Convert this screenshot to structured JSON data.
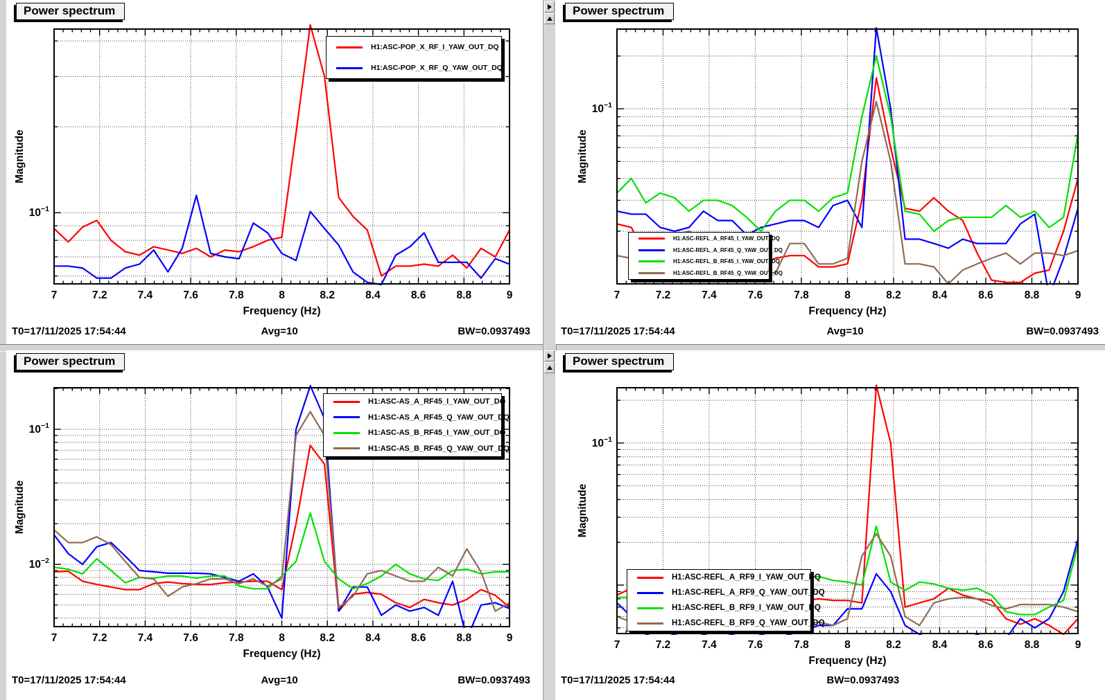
{
  "window": {
    "background": "#ffffff",
    "divider_color": "#d4d4d4"
  },
  "status_common": {
    "t0": "T0=17/11/2025 17:54:44",
    "avg": "Avg=10",
    "bw": "BW=0.0937493"
  },
  "icons": {
    "divider_buttons": [
      "right-arrow-icon",
      "up-arrow-icon"
    ]
  },
  "colors": {
    "trace_red": "#ff0000",
    "trace_blue": "#0000ff",
    "trace_green": "#00e100",
    "trace_brown": "#8f6b55",
    "grid": "#444444",
    "frame": "#000000"
  },
  "pads": [
    {
      "title": "Power spectrum",
      "status": {
        "t0": "T0=17/11/2025 17:54:44",
        "avg": "Avg=10",
        "bw": "BW=0.0937493"
      }
    },
    {
      "title": "Power spectrum",
      "status": {
        "t0": "T0=17/11/2025 17:54:44",
        "avg": "Avg=10",
        "bw": "BW=0.0937493"
      }
    },
    {
      "title": "Power spectrum",
      "status": {
        "t0": "T0=17/11/2025 17:54:44",
        "avg": "Avg=10",
        "bw": "BW=0.0937493"
      }
    },
    {
      "title": "Power spectrum",
      "status": {
        "t0": "T0=17/11/2025 17:54:44",
        "avg": "Avg=10",
        "bw": "BW=0.0937493"
      }
    }
  ],
  "x_axis": {
    "label": "Frequency (Hz)",
    "min": 7,
    "max": 9,
    "major_step": 0.2,
    "minor_step": 0.04,
    "tick_labels": [
      "7",
      "7.2",
      "7.4",
      "7.6",
      "7.8",
      "8",
      "8.2",
      "8.4",
      "8.6",
      "8.8",
      "9"
    ]
  },
  "chart_data": [
    {
      "type": "line",
      "title": "Power spectrum",
      "xlabel": "Frequency (Hz)",
      "ylabel": "Magnitude",
      "xlim": [
        7,
        9
      ],
      "ylim": [
        0.0563,
        0.44
      ],
      "grid": true,
      "legend_position": "top-right",
      "x_start": 7,
      "x_step": 0.0625,
      "ygrid": [
        0.06,
        0.07,
        0.08,
        0.09,
        0.1,
        0.2,
        0.3,
        0.4
      ],
      "ydecade_labels": [
        {
          "base": "10",
          "exp": "−1",
          "value": 0.1
        }
      ],
      "series": [
        {
          "name": "H1:ASC-POP_X_RF_I_YAW_OUT_DQ",
          "color": "#ff0000",
          "values": [
            0.088,
            0.079,
            0.089,
            0.094,
            0.08,
            0.073,
            0.071,
            0.076,
            0.074,
            0.072,
            0.075,
            0.07,
            0.074,
            0.073,
            0.076,
            0.08,
            0.082,
            0.19,
            0.455,
            0.3,
            0.113,
            0.097,
            0.087,
            0.06,
            0.065,
            0.065,
            0.066,
            0.065,
            0.071,
            0.064,
            0.075,
            0.07,
            0.087
          ]
        },
        {
          "name": "H1:ASC-POP_X_RF_Q_YAW_OUT_DQ",
          "color": "#0000ff",
          "values": [
            0.065,
            0.065,
            0.064,
            0.059,
            0.059,
            0.064,
            0.066,
            0.074,
            0.062,
            0.075,
            0.115,
            0.072,
            0.07,
            0.069,
            0.092,
            0.085,
            0.072,
            0.068,
            0.101,
            0.088,
            0.077,
            0.062,
            0.057,
            0.056,
            0.071,
            0.076,
            0.085,
            0.067,
            0.067,
            0.067,
            0.059,
            0.069,
            0.066
          ]
        }
      ]
    },
    {
      "type": "line",
      "title": "Power spectrum",
      "xlabel": "Frequency (Hz)",
      "ylabel": "Magnitude",
      "xlim": [
        7,
        9
      ],
      "ylim": [
        0.01,
        0.285
      ],
      "grid": true,
      "legend_position": "mid-left",
      "x_start": 7,
      "x_step": 0.0625,
      "ygrid": [
        0.02,
        0.03,
        0.04,
        0.05,
        0.06,
        0.07,
        0.08,
        0.09,
        0.1,
        0.2
      ],
      "ydecade_labels": [
        {
          "base": "10",
          "exp": "−1",
          "value": 0.1
        }
      ],
      "series": [
        {
          "name": "H1:ASC-REFL_A_RF45_I_YAW_OUT_DQ",
          "color": "#ff0000",
          "values": [
            0.022,
            0.021,
            0.0145,
            0.013,
            0.0125,
            0.013,
            0.014,
            0.0135,
            0.014,
            0.0135,
            0.013,
            0.014,
            0.0145,
            0.0145,
            0.0125,
            0.0125,
            0.013,
            0.03,
            0.15,
            0.06,
            0.027,
            0.026,
            0.031,
            0.026,
            0.023,
            0.015,
            0.0105,
            0.0102,
            0.0102,
            0.0115,
            0.012,
            0.02,
            0.04
          ]
        },
        {
          "name": "H1:ASC-REFL_A_RF45_Q_YAW_OUT_DQ",
          "color": "#0000ff",
          "values": [
            0.026,
            0.025,
            0.025,
            0.021,
            0.02,
            0.021,
            0.026,
            0.023,
            0.023,
            0.019,
            0.021,
            0.022,
            0.023,
            0.023,
            0.021,
            0.028,
            0.03,
            0.021,
            0.29,
            0.1,
            0.018,
            0.018,
            0.017,
            0.016,
            0.018,
            0.017,
            0.017,
            0.017,
            0.022,
            0.025,
            0.0085,
            0.014,
            0.027
          ]
        },
        {
          "name": "H1:ASC-REFL_B_RF45_I_YAW_OUT_DQ",
          "color": "#00e100",
          "values": [
            0.033,
            0.04,
            0.029,
            0.033,
            0.031,
            0.026,
            0.03,
            0.03,
            0.028,
            0.024,
            0.02,
            0.026,
            0.03,
            0.03,
            0.026,
            0.031,
            0.033,
            0.09,
            0.2,
            0.09,
            0.026,
            0.025,
            0.02,
            0.023,
            0.024,
            0.024,
            0.024,
            0.028,
            0.024,
            0.026,
            0.021,
            0.024,
            0.072
          ]
        },
        {
          "name": "H1:ASC-REFL_B_RF45_Q_YAW_OUT_DQ",
          "color": "#8f6b55",
          "values": [
            0.0145,
            0.014,
            0.015,
            0.016,
            0.019,
            0.02,
            0.018,
            0.016,
            0.016,
            0.0155,
            0.012,
            0.0115,
            0.017,
            0.017,
            0.013,
            0.013,
            0.014,
            0.05,
            0.11,
            0.05,
            0.013,
            0.013,
            0.0125,
            0.01,
            0.012,
            0.013,
            0.014,
            0.015,
            0.013,
            0.015,
            0.015,
            0.0145,
            0.0155
          ]
        }
      ]
    },
    {
      "type": "line",
      "title": "Power spectrum",
      "xlabel": "Frequency (Hz)",
      "ylabel": "Magnitude",
      "xlim": [
        7,
        9
      ],
      "ylim": [
        0.00346,
        0.203
      ],
      "grid": true,
      "legend_position": "top-right",
      "x_start": 7,
      "x_step": 0.0625,
      "ygrid": [
        0.004,
        0.005,
        0.006,
        0.007,
        0.008,
        0.009,
        0.01,
        0.02,
        0.03,
        0.04,
        0.05,
        0.06,
        0.07,
        0.08,
        0.09,
        0.1,
        0.2
      ],
      "ydecade_labels": [
        {
          "base": "10",
          "exp": "−1",
          "value": 0.1
        },
        {
          "base": "10",
          "exp": "−2",
          "value": 0.01
        }
      ],
      "series": [
        {
          "name": "H1:ASC-AS_A_RF45_I_YAW_OUT_DQ",
          "color": "#ff0000",
          "values": [
            0.0088,
            0.0089,
            0.0075,
            0.0071,
            0.0068,
            0.0065,
            0.0065,
            0.0072,
            0.0074,
            0.0072,
            0.0071,
            0.0071,
            0.0073,
            0.0074,
            0.0075,
            0.0075,
            0.0065,
            0.02,
            0.076,
            0.055,
            0.0045,
            0.006,
            0.0062,
            0.006,
            0.0052,
            0.0048,
            0.0055,
            0.0052,
            0.005,
            0.0055,
            0.0065,
            0.0059,
            0.0048
          ]
        },
        {
          "name": "H1:ASC-AS_A_RF45_Q_YAW_OUT_DQ",
          "color": "#0000ff",
          "values": [
            0.0165,
            0.012,
            0.01,
            0.0135,
            0.0145,
            0.0115,
            0.009,
            0.0088,
            0.0086,
            0.0086,
            0.0086,
            0.0085,
            0.008,
            0.0075,
            0.0085,
            0.0068,
            0.004,
            0.1,
            0.21,
            0.12,
            0.0045,
            0.0068,
            0.0068,
            0.0042,
            0.005,
            0.0045,
            0.0048,
            0.0042,
            0.0075,
            0.0028,
            0.005,
            0.0052,
            0.0047
          ]
        },
        {
          "name": "H1:ASC-AS_B_RF45_I_YAW_OUT_DQ",
          "color": "#00e100",
          "values": [
            0.0095,
            0.0092,
            0.0085,
            0.011,
            0.009,
            0.0073,
            0.008,
            0.0079,
            0.0082,
            0.0082,
            0.0079,
            0.0082,
            0.0082,
            0.0069,
            0.0066,
            0.0066,
            0.0082,
            0.0105,
            0.024,
            0.0105,
            0.0078,
            0.0066,
            0.0072,
            0.0082,
            0.01,
            0.0085,
            0.0078,
            0.0076,
            0.009,
            0.0092,
            0.0085,
            0.0088,
            0.0088
          ]
        },
        {
          "name": "H1:ASC-AS_B_RF45_Q_YAW_OUT_DQ",
          "color": "#8f6b55",
          "values": [
            0.018,
            0.0145,
            0.0145,
            0.016,
            0.014,
            0.0105,
            0.008,
            0.0078,
            0.0058,
            0.0068,
            0.0072,
            0.0078,
            0.0078,
            0.0072,
            0.0078,
            0.0069,
            0.0078,
            0.09,
            0.135,
            0.09,
            0.0048,
            0.0058,
            0.0085,
            0.009,
            0.0082,
            0.0075,
            0.0075,
            0.0095,
            0.0082,
            0.013,
            0.0088,
            0.0045,
            0.0052
          ]
        }
      ]
    },
    {
      "type": "line",
      "title": "Power spectrum",
      "xlabel": "Frequency (Hz)",
      "ylabel": "Magnitude",
      "xlim": [
        7,
        9
      ],
      "ylim": [
        0.00456,
        0.245
      ],
      "grid": true,
      "legend_position": "mid-left",
      "x_start": 7,
      "x_step": 0.0625,
      "ygrid": [
        0.005,
        0.006,
        0.007,
        0.008,
        0.009,
        0.01,
        0.02,
        0.03,
        0.04,
        0.05,
        0.06,
        0.07,
        0.08,
        0.09,
        0.1,
        0.2
      ],
      "ydecade_labels": [
        {
          "base": "10",
          "exp": "−1",
          "value": 0.1
        }
      ],
      "series": [
        {
          "name": "H1:ASC-REFL_A_RF9_I_YAW_OUT_DQ",
          "color": "#ff0000",
          "values": [
            0.0085,
            0.0095,
            0.0095,
            0.009,
            0.0088,
            0.0085,
            0.0085,
            0.0088,
            0.009,
            0.009,
            0.0092,
            0.009,
            0.0085,
            0.0078,
            0.008,
            0.0078,
            0.0078,
            0.0075,
            0.255,
            0.1,
            0.007,
            0.0075,
            0.008,
            0.0095,
            0.0085,
            0.008,
            0.0078,
            0.0058,
            0.0053,
            0.0058,
            0.0052,
            0.0045,
            0.0058
          ]
        },
        {
          "name": "H1:ASC-REFL_A_RF9_Q_YAW_OUT_DQ",
          "color": "#0000ff",
          "values": [
            0.0075,
            0.006,
            0.0045,
            0.0042,
            0.0045,
            0.0048,
            0.0045,
            0.0042,
            0.0045,
            0.0048,
            0.0045,
            0.0042,
            0.0045,
            0.0048,
            0.0052,
            0.0052,
            0.0068,
            0.0068,
            0.012,
            0.009,
            0.0052,
            0.0045,
            0.004,
            0.0038,
            0.004,
            0.0045,
            0.004,
            0.0042,
            0.0058,
            0.005,
            0.0058,
            0.009,
            0.021
          ]
        },
        {
          "name": "H1:ASC-REFL_B_RF9_I_YAW_OUT_DQ",
          "color": "#00e100",
          "values": [
            0.0082,
            0.0082,
            0.008,
            0.0082,
            0.008,
            0.0085,
            0.0095,
            0.0098,
            0.0095,
            0.0088,
            0.0085,
            0.0088,
            0.009,
            0.0112,
            0.0115,
            0.0108,
            0.0105,
            0.01,
            0.026,
            0.0105,
            0.0092,
            0.0105,
            0.0102,
            0.0095,
            0.0092,
            0.0095,
            0.0085,
            0.0065,
            0.0062,
            0.0062,
            0.007,
            0.0078,
            0.019
          ]
        },
        {
          "name": "H1:ASC-REFL_B_RF9_Q_YAW_OUT_DQ",
          "color": "#8f6b55",
          "values": [
            0.006,
            0.0055,
            0.005,
            0.0048,
            0.005,
            0.0052,
            0.005,
            0.0048,
            0.005,
            0.0052,
            0.005,
            0.0048,
            0.005,
            0.0052,
            0.0055,
            0.0052,
            0.0058,
            0.016,
            0.023,
            0.016,
            0.006,
            0.0052,
            0.0075,
            0.008,
            0.0082,
            0.008,
            0.0072,
            0.0068,
            0.0073,
            0.0073,
            0.0073,
            0.007,
            0.0065
          ]
        }
      ]
    }
  ]
}
